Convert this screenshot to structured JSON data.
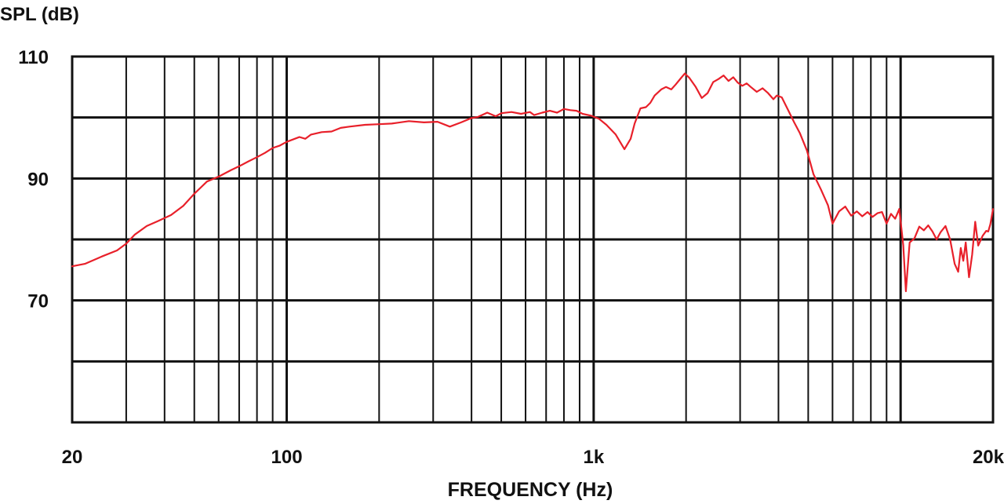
{
  "chart_data": {
    "type": "line",
    "title": "",
    "xlabel": "FREQUENCY (Hz)",
    "ylabel": "SPL (dB)",
    "x_scale": "log",
    "xlim": [
      20,
      20000
    ],
    "ylim": [
      50,
      110
    ],
    "grid": true,
    "x_tick_labels": [
      {
        "value": 20,
        "label": "20"
      },
      {
        "value": 100,
        "label": "100"
      },
      {
        "value": 1000,
        "label": "1k"
      },
      {
        "value": 20000,
        "label": "20k"
      }
    ],
    "y_tick_labels": [
      {
        "value": 110,
        "label": "110"
      },
      {
        "value": 90,
        "label": "90"
      },
      {
        "value": 70,
        "label": "70"
      }
    ],
    "y_gridlines": [
      110,
      100,
      90,
      80,
      70,
      60,
      50
    ],
    "x_gridlines": [
      20,
      30,
      40,
      50,
      60,
      70,
      80,
      90,
      100,
      200,
      300,
      400,
      500,
      600,
      700,
      800,
      900,
      1000,
      2000,
      3000,
      4000,
      5000,
      6000,
      7000,
      8000,
      9000,
      10000,
      20000
    ],
    "series": [
      {
        "color": "#e8202a",
        "points": [
          [
            20,
            75.6
          ],
          [
            22,
            76.0
          ],
          [
            25,
            77.2
          ],
          [
            28,
            78.2
          ],
          [
            30,
            79.3
          ],
          [
            32,
            80.8
          ],
          [
            35,
            82.2
          ],
          [
            38,
            83.0
          ],
          [
            42,
            84.0
          ],
          [
            46,
            85.5
          ],
          [
            50,
            87.5
          ],
          [
            55,
            89.5
          ],
          [
            60,
            90.3
          ],
          [
            66,
            91.4
          ],
          [
            70,
            92.0
          ],
          [
            75,
            92.8
          ],
          [
            80,
            93.5
          ],
          [
            85,
            94.2
          ],
          [
            90,
            95.0
          ],
          [
            95,
            95.4
          ],
          [
            100,
            96.0
          ],
          [
            110,
            96.8
          ],
          [
            115,
            96.5
          ],
          [
            120,
            97.2
          ],
          [
            130,
            97.6
          ],
          [
            140,
            97.7
          ],
          [
            150,
            98.3
          ],
          [
            160,
            98.5
          ],
          [
            180,
            98.8
          ],
          [
            200,
            98.9
          ],
          [
            220,
            99.0
          ],
          [
            250,
            99.4
          ],
          [
            280,
            99.2
          ],
          [
            310,
            99.3
          ],
          [
            340,
            98.5
          ],
          [
            370,
            99.2
          ],
          [
            400,
            99.9
          ],
          [
            420,
            100.1
          ],
          [
            450,
            100.8
          ],
          [
            480,
            100.2
          ],
          [
            500,
            100.7
          ],
          [
            540,
            100.9
          ],
          [
            580,
            100.6
          ],
          [
            620,
            100.9
          ],
          [
            640,
            100.4
          ],
          [
            680,
            100.8
          ],
          [
            720,
            101.1
          ],
          [
            760,
            100.8
          ],
          [
            800,
            101.4
          ],
          [
            840,
            101.2
          ],
          [
            880,
            101.1
          ],
          [
            920,
            100.6
          ],
          [
            980,
            100.3
          ],
          [
            1040,
            99.8
          ],
          [
            1100,
            98.8
          ],
          [
            1180,
            97.2
          ],
          [
            1260,
            94.8
          ],
          [
            1320,
            96.5
          ],
          [
            1360,
            99.0
          ],
          [
            1420,
            101.5
          ],
          [
            1480,
            101.7
          ],
          [
            1530,
            102.4
          ],
          [
            1580,
            103.6
          ],
          [
            1660,
            104.6
          ],
          [
            1720,
            105.0
          ],
          [
            1790,
            104.6
          ],
          [
            1850,
            105.4
          ],
          [
            1920,
            106.4
          ],
          [
            1980,
            107.2
          ],
          [
            2050,
            106.5
          ],
          [
            2150,
            105.0
          ],
          [
            2250,
            103.2
          ],
          [
            2350,
            104.0
          ],
          [
            2450,
            105.8
          ],
          [
            2550,
            106.3
          ],
          [
            2650,
            106.9
          ],
          [
            2750,
            106.0
          ],
          [
            2850,
            106.6
          ],
          [
            2950,
            105.7
          ],
          [
            3050,
            105.2
          ],
          [
            3150,
            105.6
          ],
          [
            3250,
            105.0
          ],
          [
            3400,
            104.2
          ],
          [
            3550,
            104.8
          ],
          [
            3700,
            104.0
          ],
          [
            3850,
            103.0
          ],
          [
            3950,
            103.6
          ],
          [
            4100,
            103.3
          ],
          [
            4300,
            101.2
          ],
          [
            4500,
            99.2
          ],
          [
            4700,
            97.4
          ],
          [
            4950,
            94.6
          ],
          [
            5200,
            90.7
          ],
          [
            5500,
            88.2
          ],
          [
            5800,
            85.6
          ],
          [
            6000,
            82.6
          ],
          [
            6300,
            84.6
          ],
          [
            6600,
            85.4
          ],
          [
            6900,
            83.9
          ],
          [
            7200,
            84.6
          ],
          [
            7500,
            83.8
          ],
          [
            7800,
            84.5
          ],
          [
            8100,
            83.7
          ],
          [
            8400,
            84.3
          ],
          [
            8700,
            84.5
          ],
          [
            9000,
            82.6
          ],
          [
            9300,
            84.2
          ],
          [
            9600,
            83.4
          ],
          [
            9900,
            85.0
          ],
          [
            10200,
            79.0
          ],
          [
            10400,
            71.5
          ],
          [
            10700,
            79.5
          ],
          [
            11100,
            80.2
          ],
          [
            11500,
            82.1
          ],
          [
            11900,
            81.5
          ],
          [
            12300,
            82.3
          ],
          [
            12700,
            81.3
          ],
          [
            13100,
            80.0
          ],
          [
            13500,
            81.2
          ],
          [
            14000,
            82.2
          ],
          [
            14500,
            80.0
          ],
          [
            15000,
            76.0
          ],
          [
            15400,
            74.7
          ],
          [
            15700,
            78.6
          ],
          [
            16000,
            76.5
          ],
          [
            16300,
            79.5
          ],
          [
            16700,
            73.8
          ],
          [
            17100,
            77.5
          ],
          [
            17500,
            82.9
          ],
          [
            17900,
            79.0
          ],
          [
            18500,
            80.6
          ],
          [
            19000,
            81.4
          ],
          [
            19300,
            81.3
          ],
          [
            19600,
            82.5
          ],
          [
            20000,
            85.0
          ]
        ]
      }
    ]
  }
}
